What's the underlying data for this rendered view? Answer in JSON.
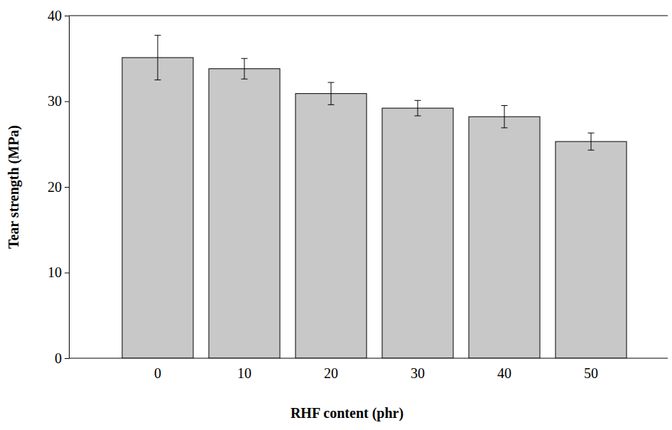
{
  "chart_data": {
    "type": "bar",
    "x_label": "RHF content (phr)",
    "y_label": "Tear strength (MPa)",
    "categories": [
      "0",
      "10",
      "20",
      "30",
      "40",
      "50"
    ],
    "values": [
      35.1,
      33.8,
      30.9,
      29.2,
      28.2,
      25.3
    ],
    "errors": [
      2.6,
      1.2,
      1.3,
      0.9,
      1.3,
      1.0
    ],
    "color": "#c8c8c8",
    "ylim": [
      0,
      40
    ],
    "yticks": [
      0,
      10,
      20,
      30,
      40
    ],
    "grid": false
  }
}
